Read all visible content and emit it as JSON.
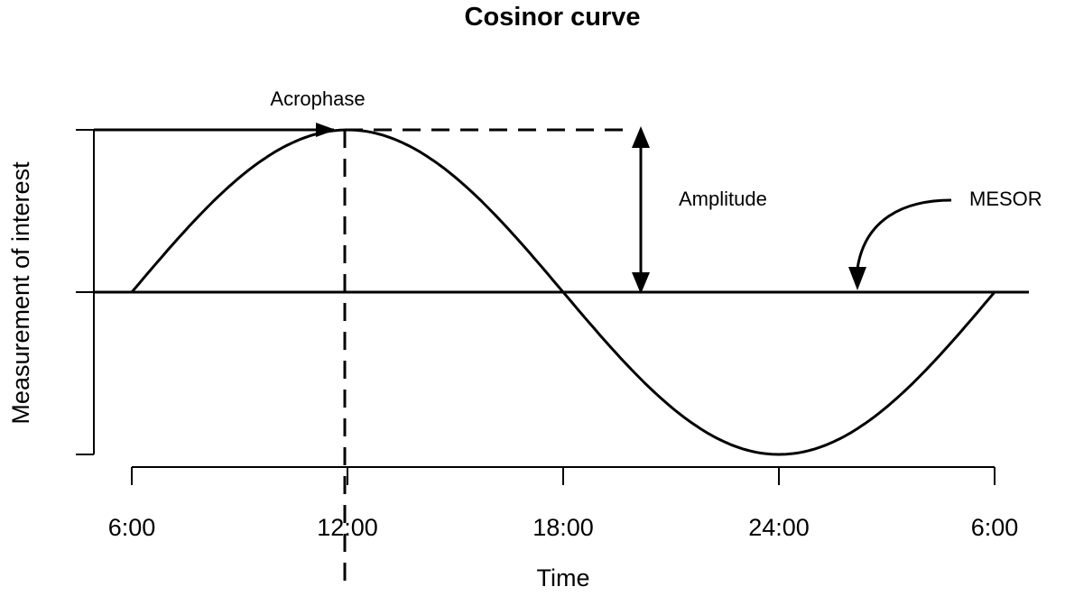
{
  "title": "Cosinor curve",
  "labels": {
    "acrophase": "Acrophase",
    "amplitude": "Amplitude",
    "mesor": "MESOR"
  },
  "axes": {
    "xlabel": "Time",
    "ylabel": "Measurement of interest",
    "x_ticks": [
      "6:00",
      "12:00",
      "18:00",
      "24:00",
      "6:00"
    ]
  },
  "curve": {
    "type": "cosine",
    "x_start_hours": 6,
    "x_end_hours": 30,
    "acrophase_hours": 12,
    "period_hours": 24,
    "mesor": 0,
    "amplitude": 1
  }
}
